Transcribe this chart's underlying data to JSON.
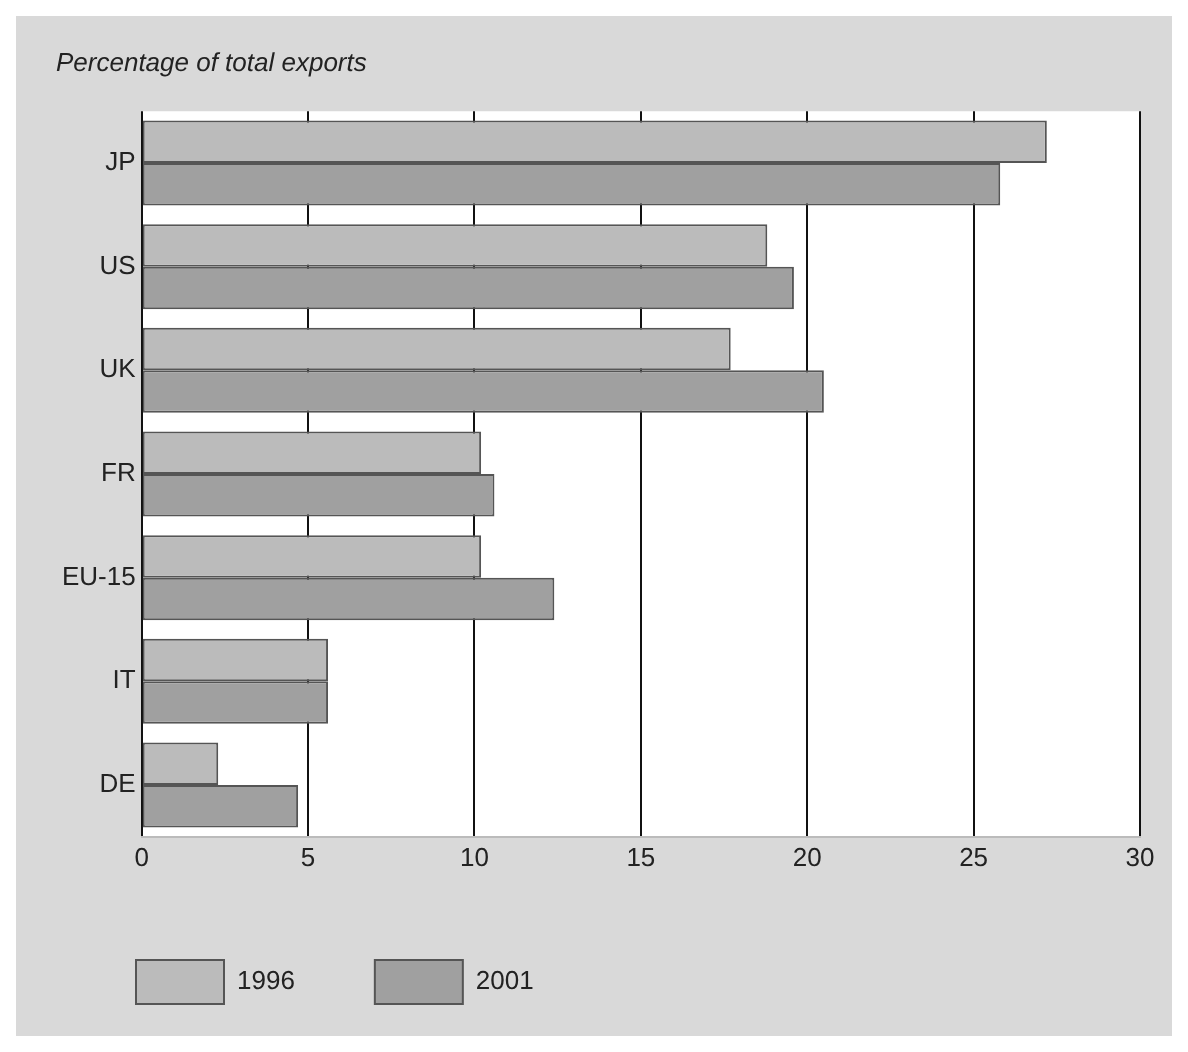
{
  "chart_data": {
    "type": "bar",
    "orientation": "horizontal",
    "title": "Percentage of total exports",
    "categories": [
      "JP",
      "US",
      "UK",
      "FR",
      "EU-15",
      "IT",
      "DE"
    ],
    "series": [
      {
        "name": "1996",
        "color": "#bbbbbb",
        "values": [
          27.2,
          18.8,
          17.7,
          10.2,
          10.2,
          5.6,
          2.3
        ]
      },
      {
        "name": "2001",
        "color": "#a0a0a0",
        "values": [
          25.8,
          19.6,
          20.5,
          10.6,
          12.4,
          5.6,
          4.7
        ]
      }
    ],
    "xlim": [
      0,
      30
    ],
    "xticks": [
      0,
      5,
      10,
      15,
      20,
      25,
      30
    ],
    "grid": "x",
    "legend": "bottom left"
  }
}
